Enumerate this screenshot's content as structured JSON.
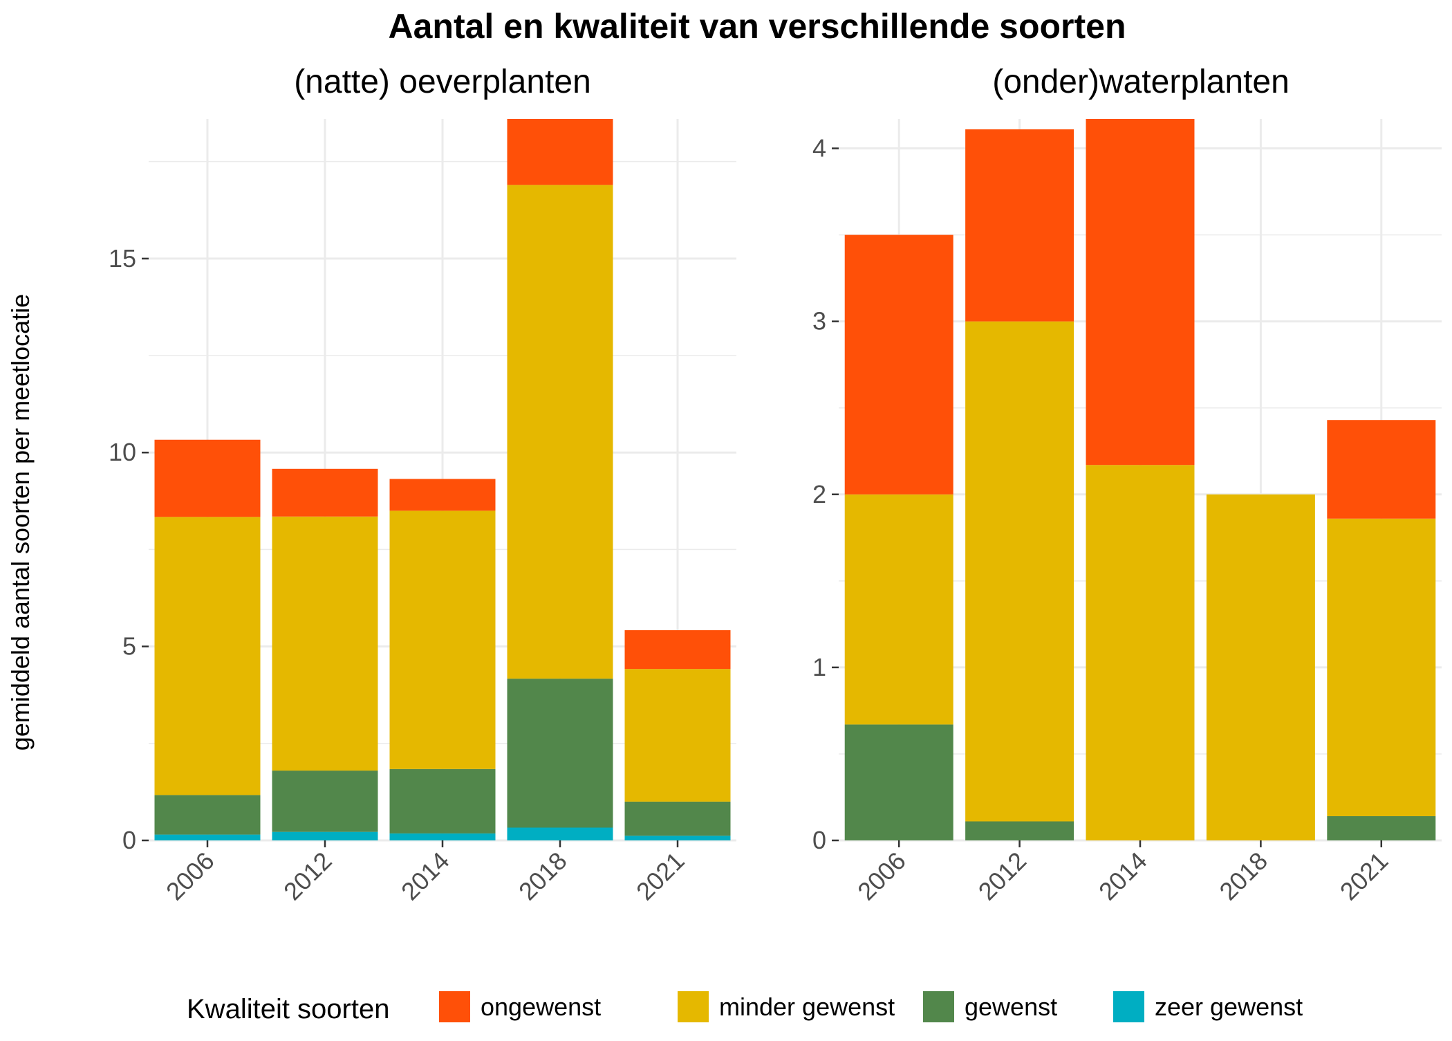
{
  "chart_data": {
    "title": "Aantal en kwaliteit van verschillende soorten",
    "ylabel": "gemiddeld aantal soorten per meetlocatie",
    "legend": {
      "title": "Kwaliteit soorten",
      "placement": "bottom",
      "entries": [
        "ongewenst",
        "minder gewenst",
        "gewenst",
        "zeer gewenst"
      ]
    },
    "colors": {
      "ongewenst": "#ff5008",
      "minder gewenst": "#e5b800",
      "gewenst": "#52874b",
      "zeer gewenst": "#00aec2"
    },
    "panels": [
      {
        "type": "bar",
        "stacked": true,
        "title": "(natte) oeverplanten",
        "categories": [
          "2006",
          "2012",
          "2014",
          "2018",
          "2021"
        ],
        "ylim": [
          0,
          18.6
        ],
        "yticks": [
          0,
          5,
          10,
          15
        ],
        "grid": true,
        "series": [
          {
            "name": "zeer gewenst",
            "values": [
              0.15,
              0.22,
              0.18,
              0.33,
              0.12
            ]
          },
          {
            "name": "gewenst",
            "values": [
              1.02,
              1.58,
              1.66,
              3.84,
              0.88
            ]
          },
          {
            "name": "minder gewenst",
            "values": [
              7.17,
              6.55,
              6.66,
              12.73,
              3.42
            ]
          },
          {
            "name": "ongewenst",
            "values": [
              1.99,
              1.23,
              0.82,
              1.7,
              1.0
            ]
          }
        ]
      },
      {
        "type": "bar",
        "stacked": true,
        "title": "(onder)waterplanten",
        "categories": [
          "2006",
          "2012",
          "2014",
          "2018",
          "2021"
        ],
        "ylim": [
          0,
          4.17
        ],
        "yticks": [
          0,
          1,
          2,
          3,
          4
        ],
        "grid": true,
        "series": [
          {
            "name": "zeer gewenst",
            "values": [
              0,
              0,
              0,
              0,
              0
            ]
          },
          {
            "name": "gewenst",
            "values": [
              0.67,
              0.11,
              0,
              0,
              0.14
            ]
          },
          {
            "name": "minder gewenst",
            "values": [
              1.33,
              2.89,
              2.17,
              2.0,
              1.72
            ]
          },
          {
            "name": "ongewenst",
            "values": [
              1.5,
              1.11,
              2.0,
              0,
              0.57
            ]
          }
        ]
      }
    ]
  }
}
